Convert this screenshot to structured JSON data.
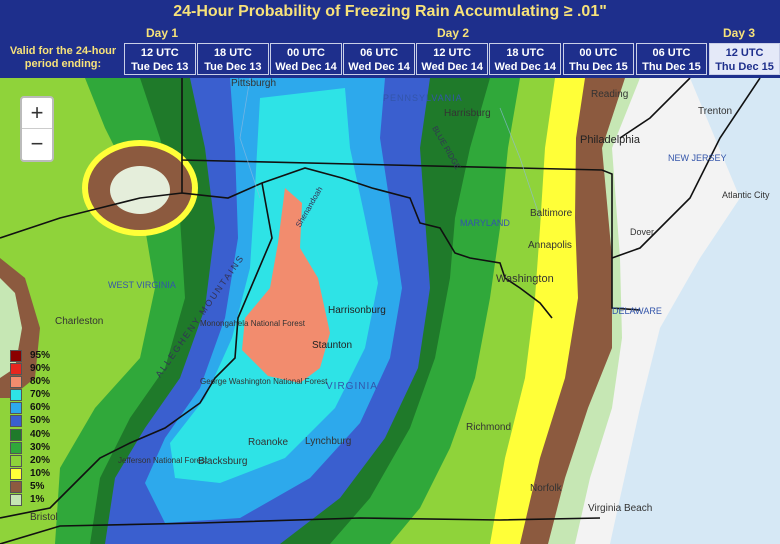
{
  "title": "24-Hour Probability of Freezing Rain Accumulating ≥ .01\"",
  "days": [
    "Day 1",
    "Day 2",
    "Day 3"
  ],
  "valid_label": [
    "Valid for the 24-hour",
    "period ending:"
  ],
  "time_cells": [
    {
      "utc": "12 UTC",
      "date": "Tue Dec 13"
    },
    {
      "utc": "18 UTC",
      "date": "Tue Dec 13"
    },
    {
      "utc": "00 UTC",
      "date": "Wed Dec 14"
    },
    {
      "utc": "06 UTC",
      "date": "Wed Dec 14"
    },
    {
      "utc": "12 UTC",
      "date": "Wed Dec 14"
    },
    {
      "utc": "18 UTC",
      "date": "Wed Dec 14"
    },
    {
      "utc": "00 UTC",
      "date": "Thu Dec 15"
    },
    {
      "utc": "06 UTC",
      "date": "Thu Dec 15"
    },
    {
      "utc": "12 UTC",
      "date": "Thu Dec 15",
      "selected": true
    }
  ],
  "zoom": {
    "in": "+",
    "out": "−"
  },
  "legend": [
    {
      "label": "95%",
      "color": "#8b0000"
    },
    {
      "label": "90%",
      "color": "#e6261f"
    },
    {
      "label": "80%",
      "color": "#f28c6e"
    },
    {
      "label": "70%",
      "color": "#2ee3e6"
    },
    {
      "label": "60%",
      "color": "#2da9ec"
    },
    {
      "label": "50%",
      "color": "#3a5fcf"
    },
    {
      "label": "40%",
      "color": "#1f7a2a"
    },
    {
      "label": "30%",
      "color": "#30a83a"
    },
    {
      "label": "20%",
      "color": "#8fd33a"
    },
    {
      "label": "10%",
      "color": "#ffff38"
    },
    {
      "label": "5%",
      "color": "#8c5a3f"
    },
    {
      "label": "1%",
      "color": "#c6e7b4"
    }
  ],
  "places": [
    "Pittsburgh",
    "PENNSYLVANIA",
    "Harrisburg",
    "Reading",
    "Trenton",
    "Philadelphia",
    "NEW JERSEY",
    "Atlantic City",
    "Dover",
    "DELAWARE",
    "MARYLAND",
    "Baltimore",
    "Annapolis",
    "Washington",
    "WEST VIRGINIA",
    "Charleston",
    "Monongahela National Forest",
    "Harrisonburg",
    "Staunton",
    "VIRGINIA",
    "George Washington National Forest",
    "Lynchburg",
    "Roanoke",
    "Richmond",
    "Blacksburg",
    "Jefferson National Forest",
    "Norfolk",
    "Virginia Beach",
    "Bristol",
    "ALLEGHENY MOUNTAINS",
    "BLUE RIDGE",
    "Shenandoah"
  ]
}
